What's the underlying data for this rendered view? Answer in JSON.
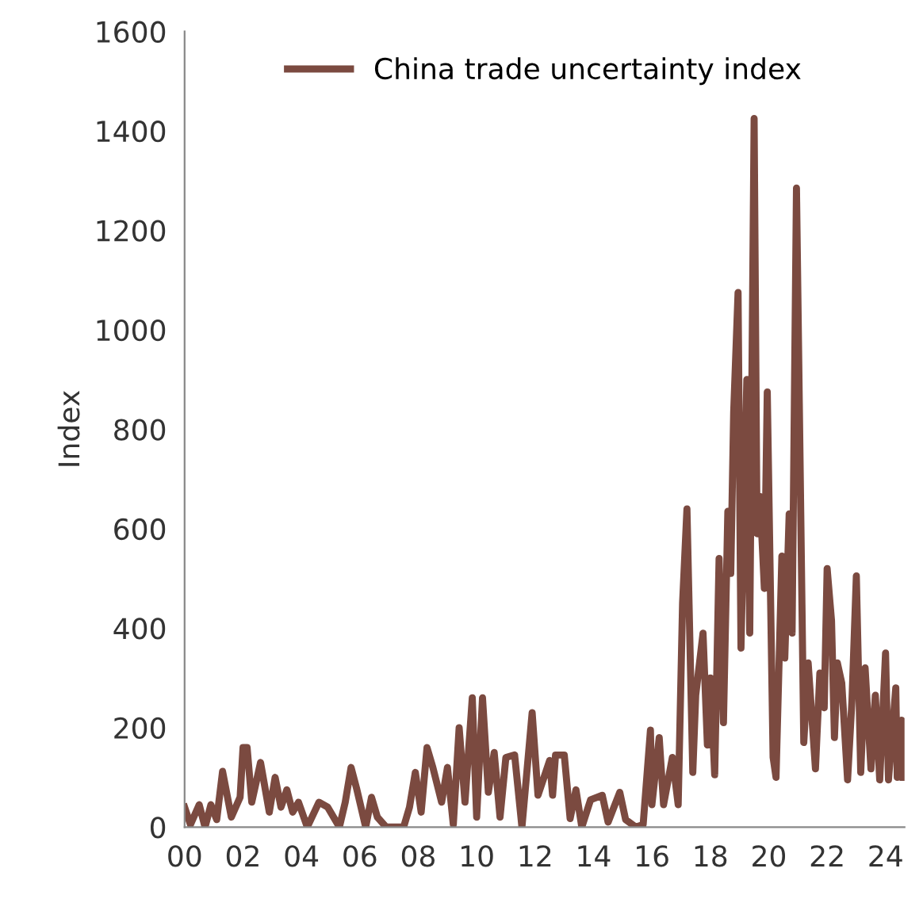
{
  "chart_data": {
    "type": "line",
    "ylabel": "Index",
    "legend": "top",
    "grid": false,
    "marker": "none",
    "line_style": "solid",
    "xlim": [
      2000,
      2024.65
    ],
    "ylim": [
      0,
      1600
    ],
    "yticks": [
      0,
      200,
      400,
      600,
      800,
      1000,
      1200,
      1400,
      1600
    ],
    "xticks": [
      {
        "value": 2000,
        "label": "00"
      },
      {
        "value": 2002,
        "label": "02"
      },
      {
        "value": 2004,
        "label": "04"
      },
      {
        "value": 2006,
        "label": "06"
      },
      {
        "value": 2008,
        "label": "08"
      },
      {
        "value": 2010,
        "label": "10"
      },
      {
        "value": 2012,
        "label": "12"
      },
      {
        "value": 2014,
        "label": "14"
      },
      {
        "value": 2016,
        "label": "16"
      },
      {
        "value": 2018,
        "label": "18"
      },
      {
        "value": 2020,
        "label": "20"
      },
      {
        "value": 2022,
        "label": "22"
      },
      {
        "value": 2024,
        "label": "24"
      }
    ],
    "series": [
      {
        "name": "China trade uncertainty index",
        "color": "#7b4a40",
        "x": [
          2000.0,
          2000.2,
          2000.5,
          2000.7,
          2000.9,
          2001.1,
          2001.3,
          2001.6,
          2001.9,
          2002.0,
          2002.14,
          2002.3,
          2002.6,
          2002.9,
          2003.1,
          2003.3,
          2003.5,
          2003.7,
          2003.9,
          2004.2,
          2004.6,
          2004.9,
          2005.3,
          2005.5,
          2005.7,
          2005.9,
          2006.2,
          2006.4,
          2006.6,
          2006.9,
          2007.2,
          2007.5,
          2007.7,
          2007.9,
          2008.1,
          2008.3,
          2008.5,
          2008.8,
          2009.0,
          2009.2,
          2009.4,
          2009.6,
          2009.85,
          2010.0,
          2010.2,
          2010.4,
          2010.6,
          2010.8,
          2011.0,
          2011.3,
          2011.55,
          2011.9,
          2012.1,
          2012.5,
          2012.6,
          2012.7,
          2013.0,
          2013.2,
          2013.4,
          2013.6,
          2013.9,
          2014.3,
          2014.5,
          2014.9,
          2015.1,
          2015.45,
          2015.7,
          2015.95,
          2016.0,
          2016.25,
          2016.4,
          2016.7,
          2016.9,
          2017.05,
          2017.2,
          2017.4,
          2017.5,
          2017.75,
          2017.9,
          2018.0,
          2018.15,
          2018.3,
          2018.45,
          2018.6,
          2018.7,
          2018.8,
          2018.95,
          2019.05,
          2019.25,
          2019.35,
          2019.5,
          2019.6,
          2019.7,
          2019.85,
          2019.95,
          2020.15,
          2020.25,
          2020.45,
          2020.55,
          2020.7,
          2020.8,
          2020.95,
          2021.2,
          2021.35,
          2021.6,
          2021.75,
          2021.9,
          2022.0,
          2022.15,
          2022.25,
          2022.35,
          2022.5,
          2022.7,
          2022.85,
          2023.0,
          2023.15,
          2023.3,
          2023.5,
          2023.65,
          2023.8,
          2024.0,
          2024.1,
          2024.35,
          2024.4,
          2024.55,
          2024.6
        ],
        "values": [
          40,
          5,
          45,
          0,
          45,
          15,
          112,
          20,
          60,
          160,
          160,
          50,
          130,
          30,
          100,
          40,
          75,
          30,
          50,
          0,
          50,
          40,
          0,
          50,
          120,
          75,
          0,
          60,
          20,
          0,
          0,
          0,
          40,
          110,
          30,
          160,
          120,
          50,
          120,
          5,
          200,
          50,
          260,
          20,
          260,
          70,
          150,
          20,
          140,
          145,
          0,
          230,
          64,
          134,
          64,
          145,
          145,
          17,
          75,
          0,
          55,
          64,
          10,
          70,
          15,
          0,
          5,
          195,
          45,
          180,
          45,
          140,
          45,
          450,
          640,
          110,
          265,
          390,
          165,
          300,
          105,
          540,
          210,
          635,
          510,
          835,
          1075,
          360,
          900,
          390,
          1425,
          590,
          665,
          480,
          875,
          140,
          100,
          545,
          340,
          630,
          390,
          1285,
          170,
          330,
          117,
          310,
          240,
          520,
          415,
          180,
          330,
          290,
          95,
          255,
          505,
          110,
          320,
          117,
          265,
          95,
          350,
          95,
          280,
          100,
          215,
          100
        ]
      }
    ]
  }
}
